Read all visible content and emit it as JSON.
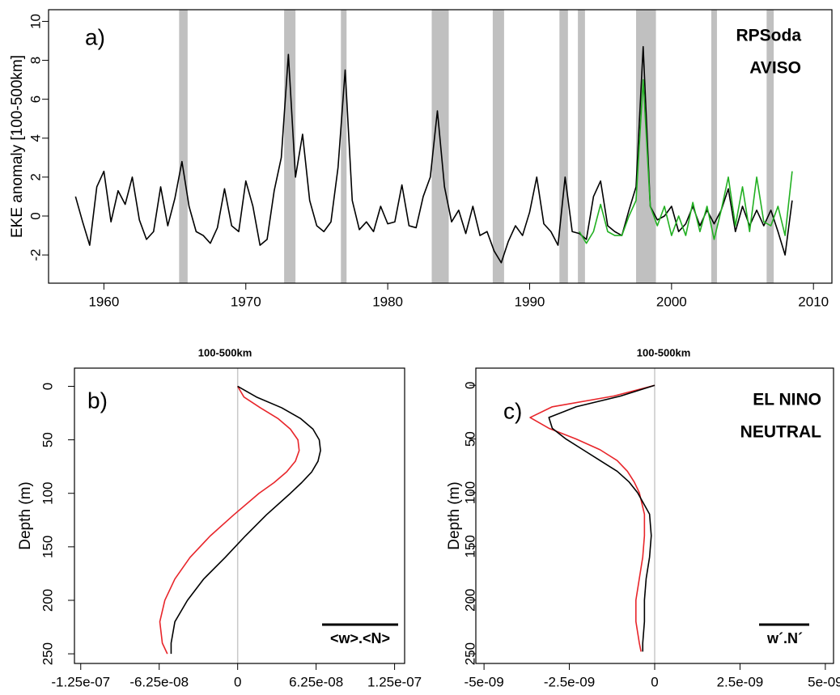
{
  "chart_data": [
    {
      "type": "line",
      "panel_label": "a)",
      "ylabel": "EKE anomaly [100-500km]",
      "xlim": [
        1956.1,
        2011.3
      ],
      "ylim": [
        -3.45,
        10.6
      ],
      "xticks": [
        1960,
        1970,
        1980,
        1990,
        2000,
        2010
      ],
      "yticks": [
        -2,
        0,
        2,
        4,
        6,
        8,
        10
      ],
      "shaded_periods": [
        [
          1965.3,
          1965.9
        ],
        [
          1972.7,
          1973.5
        ],
        [
          1976.7,
          1977.1
        ],
        [
          1983.1,
          1984.3
        ],
        [
          1987.4,
          1988.2
        ],
        [
          1992.1,
          1992.7
        ],
        [
          1993.4,
          1993.9
        ],
        [
          1997.5,
          1998.9
        ],
        [
          2002.8,
          2003.2
        ],
        [
          2006.7,
          2007.2
        ]
      ],
      "shade_color": "#c0c0c0",
      "legend": "top-right",
      "x": [
        1958.0,
        1958.5,
        1959.0,
        1959.5,
        1960.0,
        1960.5,
        1961.0,
        1961.5,
        1962.0,
        1962.5,
        1963.0,
        1963.5,
        1964.0,
        1964.5,
        1965.0,
        1965.5,
        1966.0,
        1966.5,
        1967.0,
        1967.5,
        1968.0,
        1968.5,
        1969.0,
        1969.5,
        1970.0,
        1970.5,
        1971.0,
        1971.5,
        1972.0,
        1972.5,
        1973.0,
        1973.5,
        1974.0,
        1974.5,
        1975.0,
        1975.5,
        1976.0,
        1976.5,
        1977.0,
        1977.5,
        1978.0,
        1978.5,
        1979.0,
        1979.5,
        1980.0,
        1980.5,
        1981.0,
        1981.5,
        1982.0,
        1982.5,
        1983.0,
        1983.5,
        1984.0,
        1984.5,
        1985.0,
        1985.5,
        1986.0,
        1986.5,
        1987.0,
        1987.5,
        1988.0,
        1988.5,
        1989.0,
        1989.5,
        1990.0,
        1990.5,
        1991.0,
        1991.5,
        1992.0,
        1992.5,
        1993.0,
        1993.5,
        1994.0,
        1994.5,
        1995.0,
        1995.5,
        1996.0,
        1996.5,
        1997.0,
        1997.5,
        1998.0,
        1998.5,
        1999.0,
        1999.5,
        2000.0,
        2000.5,
        2001.0,
        2001.5,
        2002.0,
        2002.5,
        2003.0,
        2003.5,
        2004.0,
        2004.5,
        2005.0,
        2005.5,
        2006.0,
        2006.5,
        2007.0,
        2007.5,
        2008.0,
        2008.5
      ],
      "series": [
        {
          "name": "RPSoda",
          "color": "#000000",
          "values": [
            1.0,
            -0.3,
            -1.5,
            1.5,
            2.3,
            -0.3,
            1.3,
            0.6,
            2.0,
            -0.2,
            -1.2,
            -0.8,
            1.5,
            -0.5,
            0.9,
            2.8,
            0.5,
            -0.8,
            -1.0,
            -1.4,
            -0.6,
            1.4,
            -0.5,
            -0.8,
            1.8,
            0.5,
            -1.5,
            -1.2,
            1.3,
            3.0,
            8.3,
            2.0,
            4.2,
            0.8,
            -0.5,
            -0.8,
            -0.3,
            2.5,
            7.5,
            0.8,
            -0.7,
            -0.3,
            -0.8,
            0.5,
            -0.4,
            -0.3,
            1.6,
            -0.5,
            -0.6,
            1.0,
            2.0,
            5.4,
            1.5,
            -0.3,
            0.3,
            -0.9,
            0.5,
            -1.0,
            -0.8,
            -1.8,
            -2.4,
            -1.3,
            -0.5,
            -1.0,
            0.2,
            2.0,
            -0.4,
            -0.8,
            -1.5,
            2.0,
            -0.8,
            -0.9,
            -1.2,
            1.0,
            1.8,
            -0.5,
            -0.8,
            -1.0,
            0.3,
            1.5,
            8.7,
            0.5,
            -0.2,
            0.0,
            0.5,
            -0.8,
            -0.4,
            0.5,
            -0.5,
            0.3,
            -0.4,
            0.3,
            1.4,
            -0.8,
            0.5,
            -0.5,
            0.3,
            -0.5,
            0.3,
            -0.8,
            -2.0,
            0.8
          ]
        },
        {
          "name": "AVISO",
          "color": "#22b022",
          "values": [
            null,
            null,
            null,
            null,
            null,
            null,
            null,
            null,
            null,
            null,
            null,
            null,
            null,
            null,
            null,
            null,
            null,
            null,
            null,
            null,
            null,
            null,
            null,
            null,
            null,
            null,
            null,
            null,
            null,
            null,
            null,
            null,
            null,
            null,
            null,
            null,
            null,
            null,
            null,
            null,
            null,
            null,
            null,
            null,
            null,
            null,
            null,
            null,
            null,
            null,
            null,
            null,
            null,
            null,
            null,
            null,
            null,
            null,
            null,
            null,
            null,
            null,
            null,
            null,
            null,
            null,
            null,
            null,
            null,
            null,
            null,
            -0.8,
            -1.4,
            -0.8,
            0.6,
            -0.8,
            -1.0,
            -1.0,
            0.0,
            0.8,
            7.0,
            0.5,
            -0.5,
            0.5,
            -1.0,
            0.0,
            -1.0,
            0.7,
            -0.8,
            0.5,
            -1.2,
            0.3,
            2.0,
            -0.5,
            1.5,
            -0.8,
            2.0,
            -0.3,
            -0.5,
            0.5,
            -1.0,
            2.3
          ]
        }
      ]
    },
    {
      "type": "profile",
      "title": "100-500km",
      "panel_label": "b)",
      "ylabel": "Depth (m)",
      "annotation": "<w>.<N>",
      "xlim": [
        -1.3e-07,
        1.33e-07
      ],
      "ylim": [
        -17,
        259
      ],
      "y_reversed": true,
      "zero_line_color": "#c8c8c8",
      "xticks": [
        {
          "value": -1.25e-07,
          "label": "-1.25e-07"
        },
        {
          "value": -6.25e-08,
          "label": "-6.25e-08"
        },
        0,
        {
          "value": 6.25e-08,
          "label": "6.25e-08"
        },
        {
          "value": 1.25e-07,
          "label": "1.25e-07"
        }
      ],
      "yticks": [
        0,
        50,
        100,
        150,
        200,
        250
      ],
      "depth": [
        0,
        10,
        20,
        30,
        40,
        50,
        60,
        70,
        80,
        90,
        100,
        120,
        140,
        160,
        180,
        200,
        220,
        240,
        250
      ],
      "series": [
        {
          "color": "#e8252a",
          "values": [
            0,
            5e-09,
            1.8e-08,
            3.2e-08,
            4.2e-08,
            4.8e-08,
            4.9e-08,
            4.6e-08,
            3.9e-08,
            2.9e-08,
            1.7e-08,
            -3e-09,
            -2.2e-08,
            -3.8e-08,
            -5e-08,
            -5.8e-08,
            -6.2e-08,
            -6e-08,
            -5.6e-08
          ]
        },
        {
          "color": "#000000",
          "values": [
            0,
            1.5e-08,
            3.5e-08,
            5e-08,
            6e-08,
            6.5e-08,
            6.6e-08,
            6.4e-08,
            5.9e-08,
            5.1e-08,
            4.2e-08,
            2.3e-08,
            6e-09,
            -1e-08,
            -2.7e-08,
            -4e-08,
            -5e-08,
            -5.3e-08,
            -5.3e-08
          ]
        }
      ]
    },
    {
      "type": "profile",
      "title": "100-500km",
      "panel_label": "c)",
      "ylabel": "Depth (m)",
      "annotation": "w´.N´",
      "legend": "top-right",
      "xlim": [
        -5.24e-09,
        5.24e-09
      ],
      "ylim": [
        -16,
        259
      ],
      "y_reversed": true,
      "zero_line_color": "#c8c8c8",
      "xticks": [
        {
          "value": -5e-09,
          "label": "-5e-09"
        },
        {
          "value": -2.5e-09,
          "label": "-2.5e-09"
        },
        0,
        {
          "value": 2.5e-09,
          "label": "2.5e-09"
        },
        {
          "value": 5e-09,
          "label": "5e-09"
        }
      ],
      "yticks": [
        0,
        50,
        100,
        150,
        200,
        250
      ],
      "depth": [
        0,
        10,
        20,
        30,
        40,
        50,
        60,
        70,
        80,
        90,
        100,
        120,
        140,
        160,
        180,
        200,
        220,
        240,
        248
      ],
      "series": [
        {
          "name": "EL NINO",
          "color": "#e8252a",
          "values": [
            0,
            -1.2e-09,
            -3e-09,
            -3.65e-09,
            -3.1e-09,
            -2.3e-09,
            -1.6e-09,
            -1.1e-09,
            -8e-10,
            -6e-10,
            -4.5e-10,
            -3e-10,
            -3e-10,
            -3.5e-10,
            -4.5e-10,
            -5.5e-10,
            -5.5e-10,
            -4.5e-10,
            -4e-10
          ]
        },
        {
          "name": "NEUTRAL",
          "color": "#000000",
          "values": [
            0,
            -1e-09,
            -2.3e-09,
            -3.1e-09,
            -3e-09,
            -2.6e-09,
            -2.1e-09,
            -1.6e-09,
            -1.1e-09,
            -7.5e-10,
            -5e-10,
            -1.5e-10,
            -1e-10,
            -1.5e-10,
            -2.5e-10,
            -3e-10,
            -3e-10,
            -3.5e-10,
            -3.5e-10
          ]
        }
      ]
    }
  ]
}
